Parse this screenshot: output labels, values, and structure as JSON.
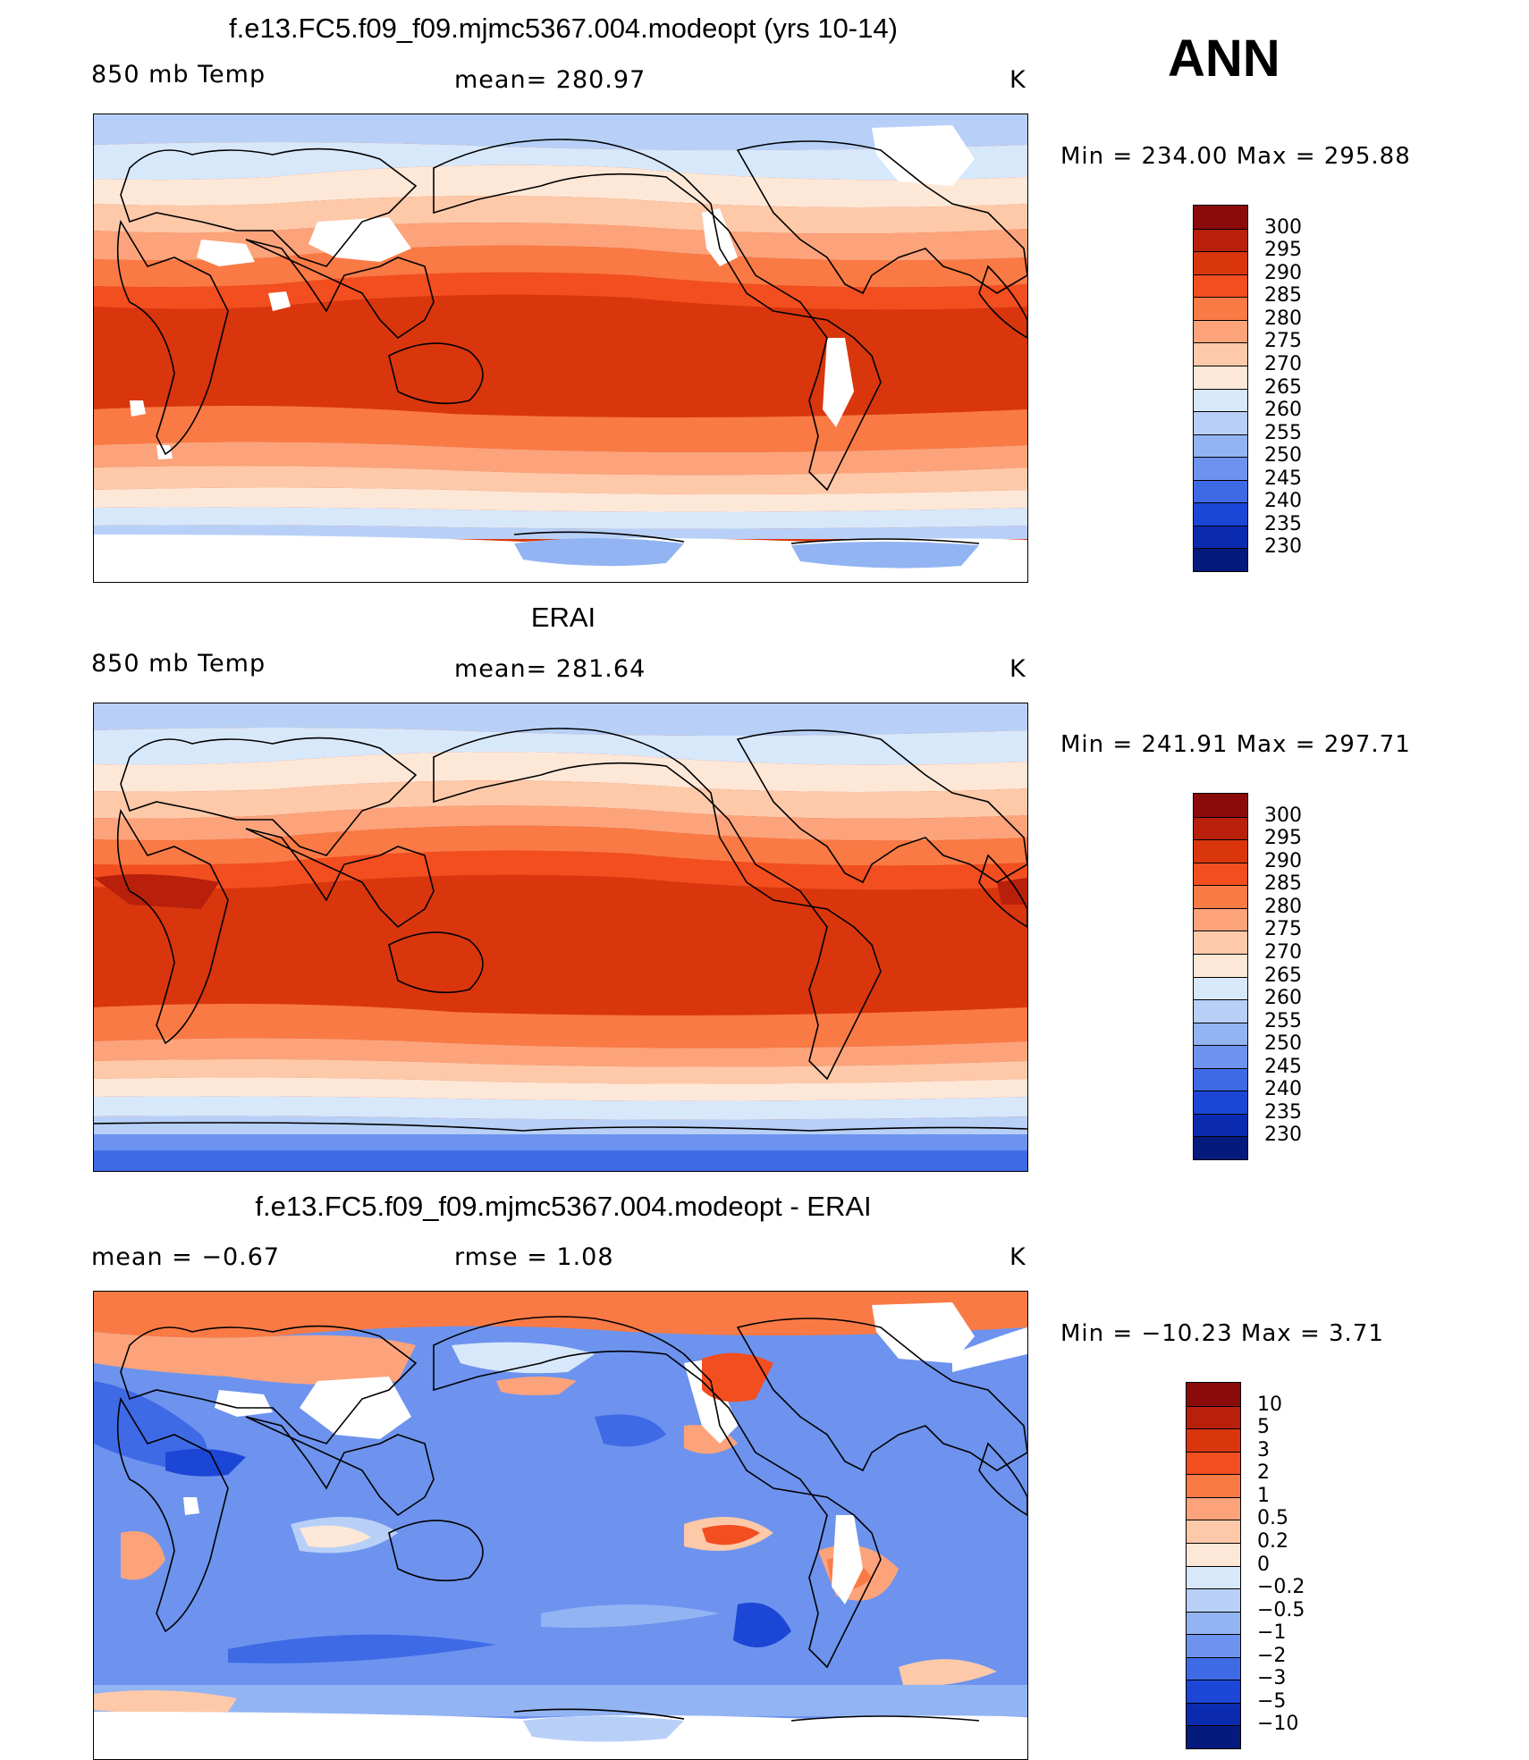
{
  "season": "ANN",
  "panels": [
    {
      "title": "f.e13.FC5.f09_f09.mjmc5367.004.modeopt (yrs 10-14)",
      "left_label": "850 mb Temp",
      "center_label": "mean=  280.97",
      "units": "K",
      "minmax": "Min  =  234.00  Max  =  295.88"
    },
    {
      "title": "ERAI",
      "left_label": "850 mb Temp",
      "center_label": "mean=  281.64",
      "units": "K",
      "minmax": "Min  =  241.91  Max  =  297.71"
    },
    {
      "title": "f.e13.FC5.f09_f09.mjmc5367.004.modeopt - ERAI",
      "left_label": "mean  =     −0.67",
      "center_label": "rmse  =     1.08",
      "units": "K",
      "minmax": "Min  =  −10.23  Max  =     3.71"
    }
  ],
  "colorbars": {
    "temperature": {
      "labels": [
        "300",
        "295",
        "290",
        "285",
        "280",
        "275",
        "270",
        "265",
        "260",
        "255",
        "250",
        "245",
        "240",
        "235",
        "230"
      ],
      "colors": [
        "#8b0a0a",
        "#b8200c",
        "#d9360e",
        "#f24e1f",
        "#f97a45",
        "#fca37b",
        "#fdc9a9",
        "#fde8d8",
        "#d8e8fb",
        "#b8d0f7",
        "#93b4f3",
        "#6d93ee",
        "#3f6ae6",
        "#1b46d6",
        "#0a2bb0",
        "#041a7c"
      ]
    },
    "difference": {
      "labels": [
        "10",
        "5",
        "3",
        "2",
        "1",
        "0.5",
        "0.2",
        "0",
        "−0.2",
        "−0.5",
        "−1",
        "−2",
        "−3",
        "−5",
        "−10"
      ],
      "colors": [
        "#8b0a0a",
        "#b8200c",
        "#d9360e",
        "#f24e1f",
        "#f97a45",
        "#fca37b",
        "#fdc9a9",
        "#fde8d8",
        "#d8e8fb",
        "#b8d0f7",
        "#93b4f3",
        "#6d93ee",
        "#3f6ae6",
        "#1b46d6",
        "#0a2bb0",
        "#041a7c"
      ]
    }
  }
}
